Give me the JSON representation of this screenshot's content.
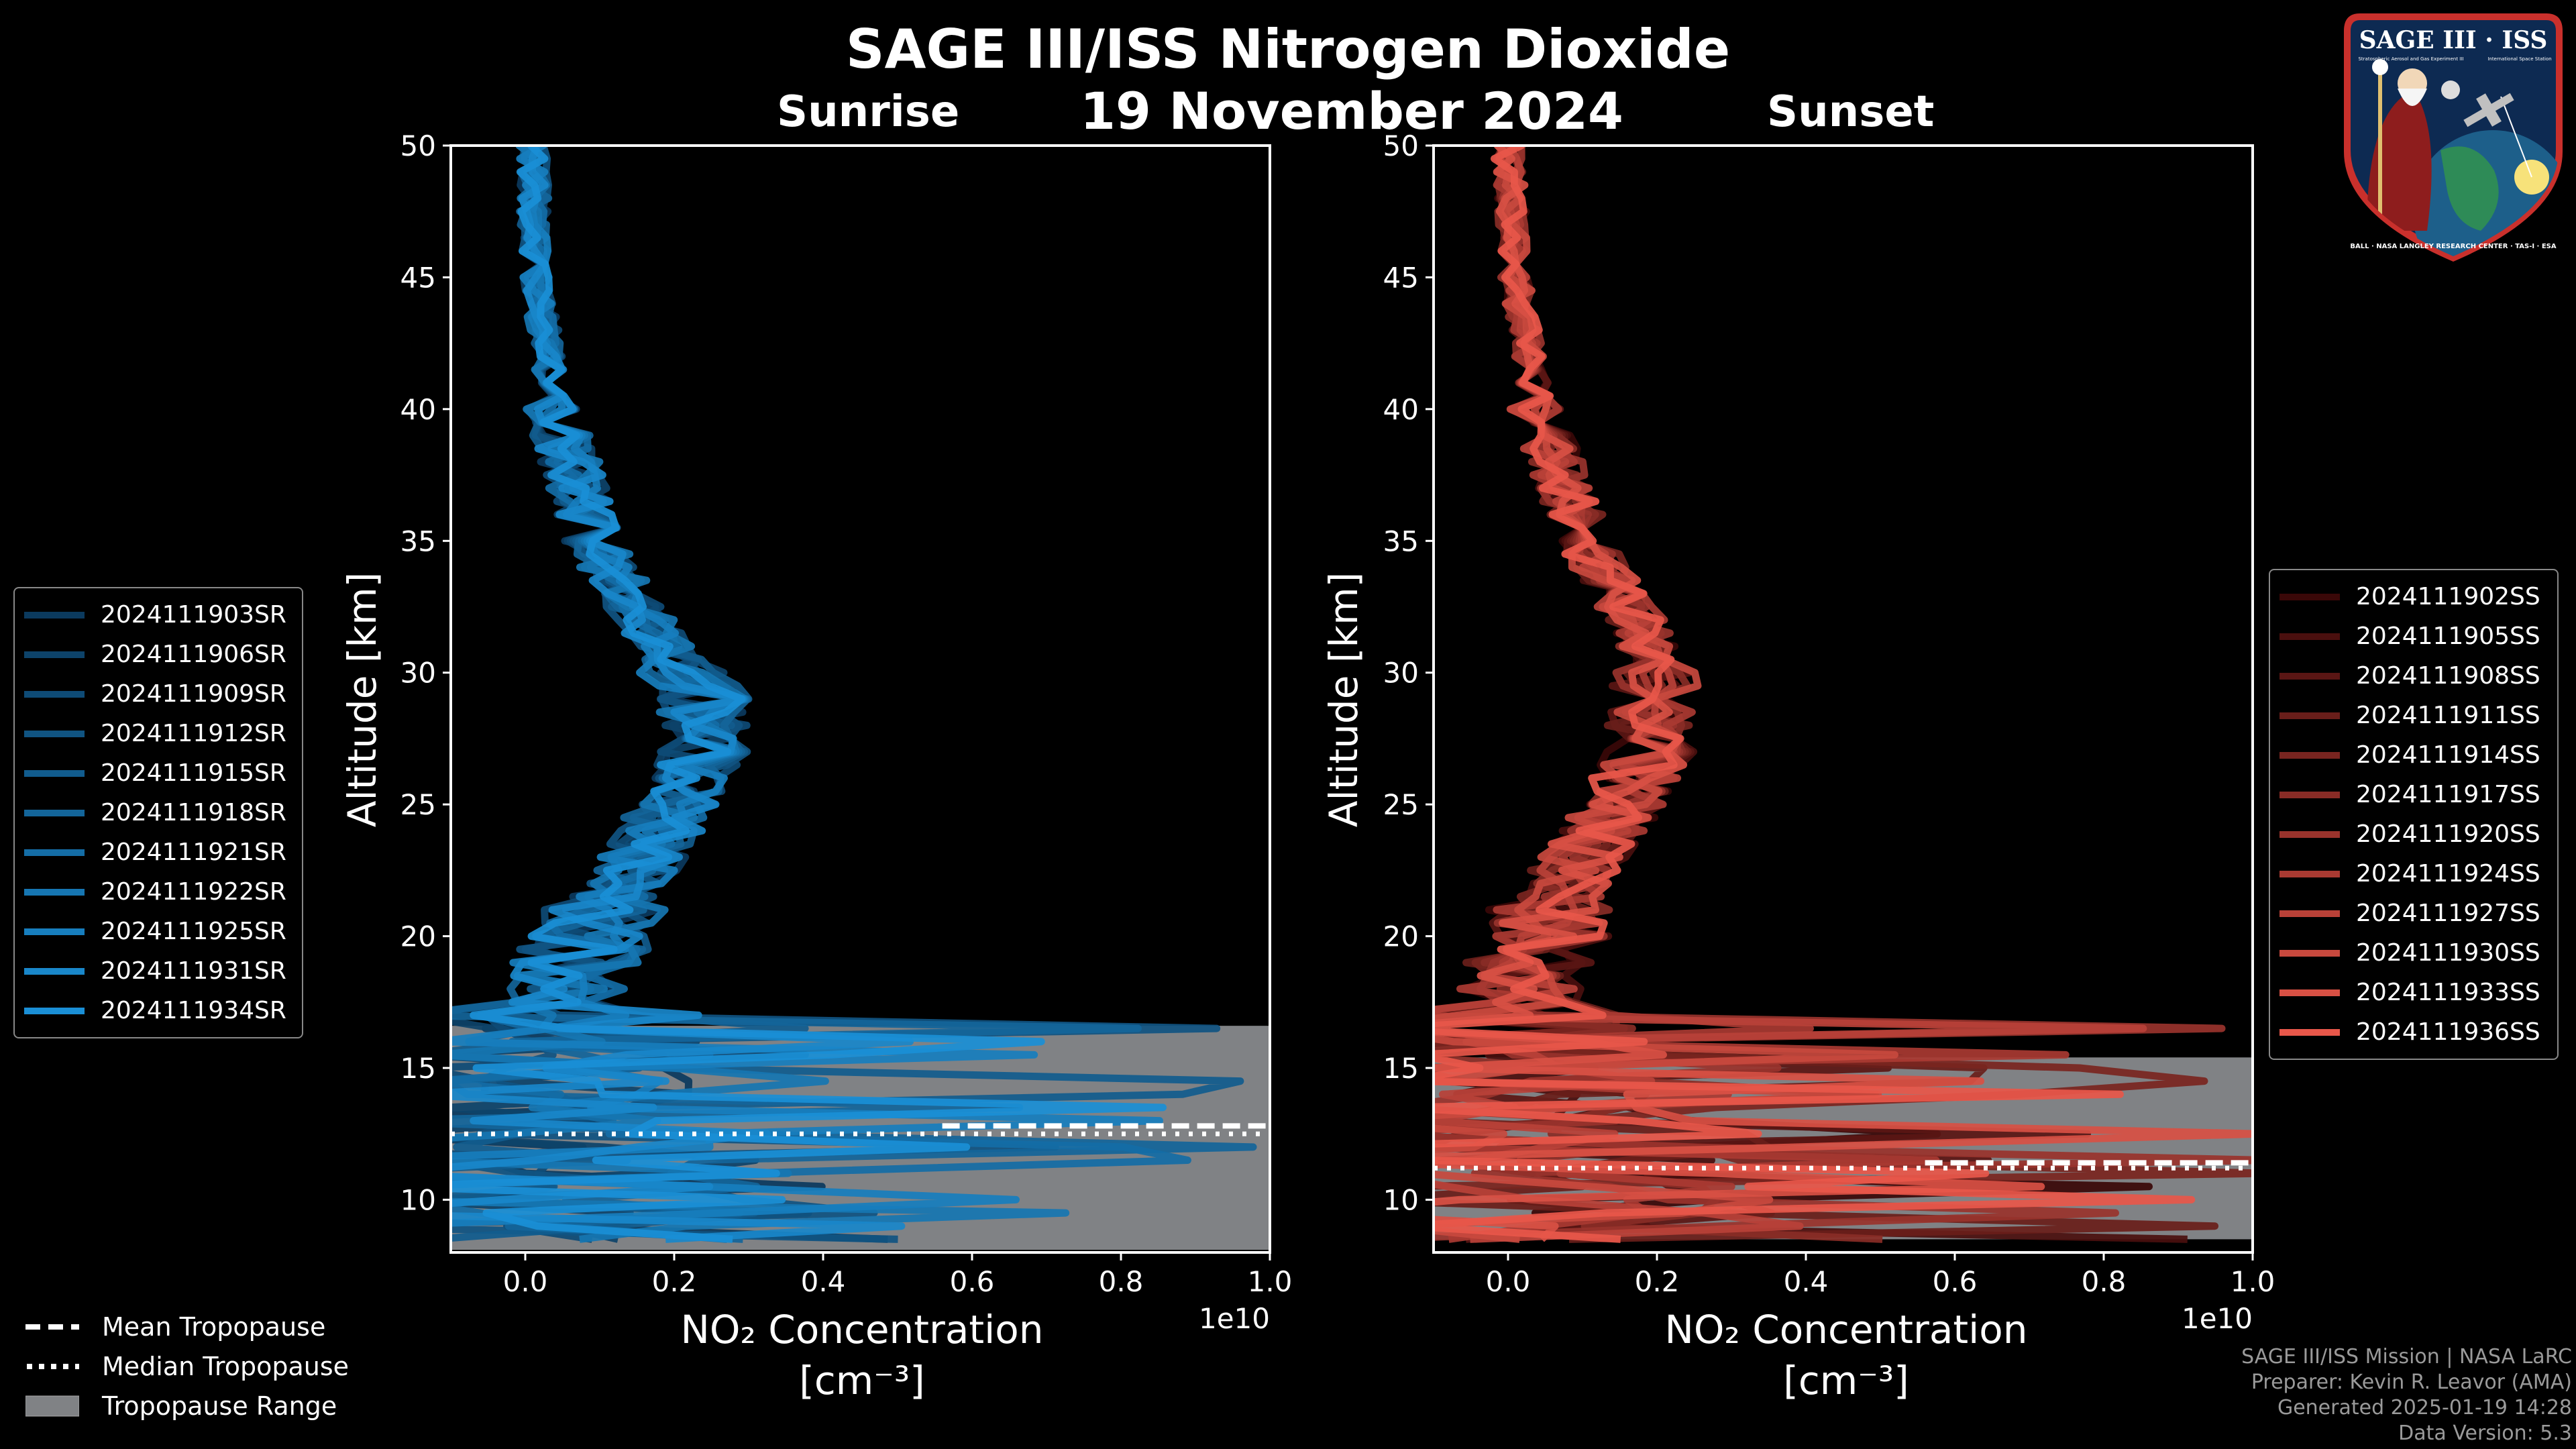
{
  "header": {
    "title": "SAGE III/ISS Nitrogen Dioxide",
    "date": "19 November 2024",
    "sunrise_label": "Sunrise",
    "sunset_label": "Sunset"
  },
  "chart_data": [
    {
      "type": "line",
      "title": "Sunrise",
      "xlabel": "NO₂ Concentration [cm⁻³]",
      "xlabel_line1": "NO₂ Concentration",
      "xlabel_line2": "[cm⁻³]",
      "x_offset_label": "1e10",
      "ylabel": "Altitude [km]",
      "xlim": [
        -0.1,
        1.0
      ],
      "ylim": [
        8,
        50
      ],
      "xticks": [
        0.0,
        0.2,
        0.4,
        0.6,
        0.8,
        1.0
      ],
      "xtick_labels": [
        "0.0",
        "0.2",
        "0.4",
        "0.6",
        "0.8",
        "1.0"
      ],
      "yticks": [
        10,
        15,
        20,
        25,
        30,
        35,
        40,
        45,
        50
      ],
      "ytick_labels": [
        "10",
        "15",
        "20",
        "25",
        "30",
        "35",
        "40",
        "45",
        "50"
      ],
      "series_color_dark": "#0b3a5e",
      "series_color_light": "#1a8fd6",
      "series": [
        {
          "name": "2024111903SR"
        },
        {
          "name": "2024111906SR"
        },
        {
          "name": "2024111909SR"
        },
        {
          "name": "2024111912SR"
        },
        {
          "name": "2024111915SR"
        },
        {
          "name": "2024111918SR"
        },
        {
          "name": "2024111921SR"
        },
        {
          "name": "2024111922SR"
        },
        {
          "name": "2024111925SR"
        },
        {
          "name": "2024111931SR"
        },
        {
          "name": "2024111934SR"
        }
      ],
      "profile_mean": [
        [
          50,
          0.01
        ],
        [
          45,
          0.015
        ],
        [
          40,
          0.04
        ],
        [
          35,
          0.09
        ],
        [
          32,
          0.16
        ],
        [
          29,
          0.24
        ],
        [
          27,
          0.24
        ],
        [
          25,
          0.2
        ],
        [
          23,
          0.16
        ],
        [
          21,
          0.11
        ],
        [
          19,
          0.07
        ],
        [
          17,
          0.04
        ],
        [
          15,
          0.02
        ],
        [
          12,
          0.02
        ],
        [
          9,
          0.02
        ]
      ],
      "tropopause_range_km": [
        8.1,
        16.6
      ],
      "mean_tropopause_km": 12.8,
      "median_tropopause_km": 12.5
    },
    {
      "type": "line",
      "title": "Sunset",
      "xlabel": "NO₂ Concentration [cm⁻³]",
      "xlabel_line1": "NO₂ Concentration",
      "xlabel_line2": "[cm⁻³]",
      "x_offset_label": "1e10",
      "ylabel": "Altitude [km]",
      "xlim": [
        -0.1,
        1.0
      ],
      "ylim": [
        8,
        50
      ],
      "xticks": [
        0.0,
        0.2,
        0.4,
        0.6,
        0.8,
        1.0
      ],
      "xtick_labels": [
        "0.0",
        "0.2",
        "0.4",
        "0.6",
        "0.8",
        "1.0"
      ],
      "yticks": [
        10,
        15,
        20,
        25,
        30,
        35,
        40,
        45,
        50
      ],
      "ytick_labels": [
        "10",
        "15",
        "20",
        "25",
        "30",
        "35",
        "40",
        "45",
        "50"
      ],
      "series_color_dark": "#3a0808",
      "series_color_light": "#e8574a",
      "series": [
        {
          "name": "2024111902SS"
        },
        {
          "name": "2024111905SS"
        },
        {
          "name": "2024111908SS"
        },
        {
          "name": "2024111911SS"
        },
        {
          "name": "2024111914SS"
        },
        {
          "name": "2024111917SS"
        },
        {
          "name": "2024111920SS"
        },
        {
          "name": "2024111924SS"
        },
        {
          "name": "2024111927SS"
        },
        {
          "name": "2024111930SS"
        },
        {
          "name": "2024111933SS"
        },
        {
          "name": "2024111936SS"
        }
      ],
      "profile_mean": [
        [
          50,
          0.0
        ],
        [
          45,
          0.01
        ],
        [
          40,
          0.04
        ],
        [
          35,
          0.1
        ],
        [
          32,
          0.17
        ],
        [
          30,
          0.2
        ],
        [
          27,
          0.19
        ],
        [
          25,
          0.15
        ],
        [
          23,
          0.1
        ],
        [
          21,
          0.06
        ],
        [
          19,
          0.03
        ],
        [
          17,
          0.01
        ],
        [
          15,
          0.01
        ],
        [
          12,
          0.02
        ],
        [
          9,
          0.03
        ]
      ],
      "tropopause_range_km": [
        8.5,
        15.4
      ],
      "mean_tropopause_km": 11.4,
      "median_tropopause_km": 11.2
    }
  ],
  "tropopause_legend": {
    "mean": "Mean Tropopause",
    "median": "Median Tropopause",
    "range": "Tropopause Range",
    "range_color": "#808285"
  },
  "credits": {
    "line1": "SAGE III/ISS Mission | NASA LaRC",
    "line2": "Preparer: Kevin R. Leavor (AMA)",
    "line3": "Generated 2025-01-19 14:28",
    "line4": "Data Version: 5.3"
  },
  "logo": {
    "title": "SAGE III · ISS",
    "subtitle_left": "Stratospheric Aerosol and Gas Experiment III",
    "subtitle_right": "International Space Station",
    "ring_text": "BALL · NASA LANGLEY RESEARCH CENTER · TAS-I · ESA"
  }
}
